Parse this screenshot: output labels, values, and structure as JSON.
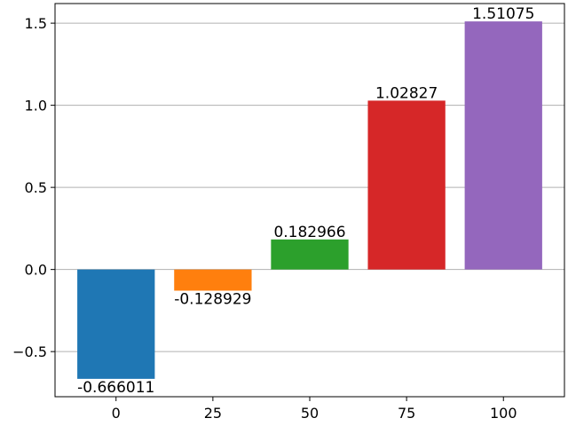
{
  "chart_data": {
    "type": "bar",
    "categories": [
      "0",
      "25",
      "50",
      "75",
      "100"
    ],
    "x": [
      0,
      25,
      50,
      75,
      100
    ],
    "values": [
      -0.666011,
      -0.128929,
      0.182966,
      1.02827,
      1.51075
    ],
    "value_labels": [
      "-0.666011",
      "-0.128929",
      "0.182966",
      "1.02827",
      "1.51075"
    ],
    "colors": [
      "#1f77b4",
      "#ff7f0e",
      "#2ca02c",
      "#d62728",
      "#9467bd"
    ],
    "title": "",
    "xlabel": "",
    "ylabel": "",
    "xlim": [
      -15.75,
      115.75
    ],
    "ylim": [
      -0.7748,
      1.6195
    ],
    "x_ticks": [
      "0",
      "25",
      "50",
      "75",
      "100"
    ],
    "y_ticks": [
      -0.5,
      0.0,
      0.5,
      1.0,
      1.5
    ],
    "y_tick_labels": [
      "−0.5",
      "0.0",
      "0.5",
      "1.0",
      "1.5"
    ],
    "grid": "y-axis horizontal lines",
    "legend": "none"
  }
}
